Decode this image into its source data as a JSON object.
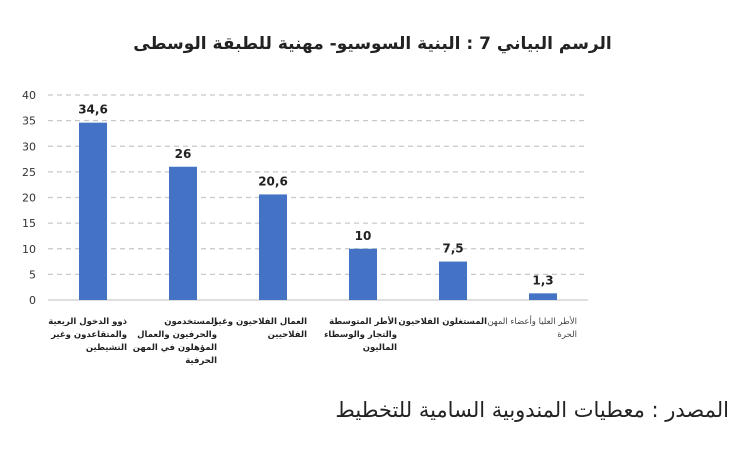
{
  "chart_data": {
    "type": "bar",
    "title": "الرسم البياني 7 : البنية السوسيو- مهنية للطبقة الوسطى",
    "categories": [
      "ذوو الدخول الريعية والمتقاعدون وغير النشيطين",
      "المستخدمون والحرفيون والعمال المؤهلون في المهن الحرفية",
      "العمال الفلاحيون وغير الفلاحيين",
      "الأطر المتوسطة والتجار والوسطاء الماليون",
      "المستغلون الفلاحيون",
      "الأطر العليا وأعضاء المهن الحرة"
    ],
    "values": [
      34.6,
      26,
      20.6,
      10,
      7.5,
      1.3
    ],
    "value_labels": [
      "34,6",
      "26",
      "20,6",
      "10",
      "7,5",
      "1,3"
    ],
    "ylim": [
      0,
      40
    ],
    "yticks": [
      0,
      5,
      10,
      15,
      20,
      25,
      30,
      35,
      40
    ],
    "grid": true,
    "bar_color": "#4472C4",
    "grid_color": "#c8c8c8"
  },
  "source_note": "المصدر : معطيات المندوبية السامية للتخطيط"
}
